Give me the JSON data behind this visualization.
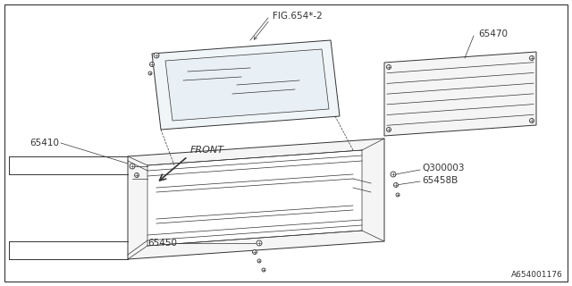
{
  "bg_color": "#ffffff",
  "line_color": "#333333",
  "lw": 0.7,
  "tlw": 0.5,
  "watermark": "A654001176",
  "label_FIG654": "FIG.654*-2",
  "label_65410": "65410",
  "label_65470": "65470",
  "label_65450": "65450",
  "label_65458B": "65458B",
  "label_Q300003": "Q300003",
  "label_FRONT": "FRONT",
  "font_size": 7.5,
  "gray": "#aaaaaa"
}
